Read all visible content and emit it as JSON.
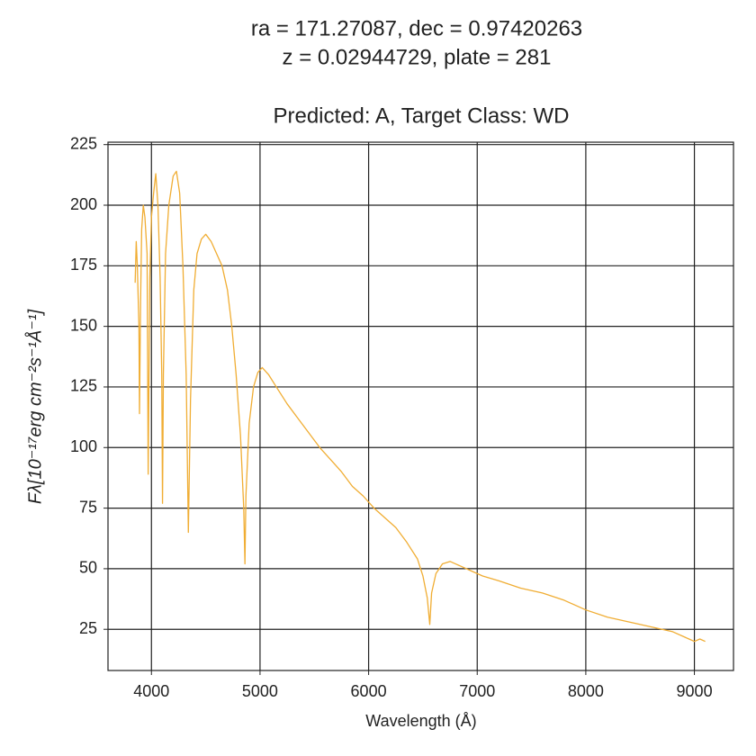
{
  "chart_data": {
    "type": "line",
    "title": [
      "ra = 171.27087, dec = 0.97420263",
      "z = 0.02944729, plate = 281"
    ],
    "subtitle": "Predicted: A, Target Class: WD",
    "xlabel": "Wavelength (Å)",
    "ylabel": "Fλ[10⁻¹⁷erg cm⁻²s⁻¹Å⁻¹]",
    "xlim": [
      3600,
      9360
    ],
    "ylim": [
      8,
      226
    ],
    "xticks": [
      4000,
      5000,
      6000,
      7000,
      8000,
      9000
    ],
    "yticks": [
      25,
      50,
      75,
      100,
      125,
      150,
      175,
      200,
      225
    ],
    "grid": true,
    "series": [
      {
        "color": "#f0ad33",
        "x": [
          3850,
          3860,
          3870,
          3885,
          3890,
          3900,
          3910,
          3925,
          3940,
          3960,
          3970,
          3985,
          4000,
          4020,
          4040,
          4060,
          4080,
          4095,
          4102,
          4110,
          4130,
          4160,
          4200,
          4230,
          4260,
          4290,
          4320,
          4340,
          4360,
          4390,
          4420,
          4460,
          4500,
          4550,
          4600,
          4650,
          4700,
          4740,
          4780,
          4820,
          4850,
          4861,
          4870,
          4900,
          4940,
          4980,
          5020,
          5080,
          5150,
          5250,
          5350,
          5450,
          5550,
          5650,
          5750,
          5850,
          5950,
          6050,
          6150,
          6250,
          6350,
          6450,
          6500,
          6540,
          6563,
          6580,
          6620,
          6680,
          6750,
          6850,
          6950,
          7050,
          7200,
          7400,
          7600,
          7800,
          8000,
          8200,
          8400,
          8600,
          8800,
          8950,
          9000,
          9050,
          9100
        ],
        "values": [
          168,
          185,
          175,
          150,
          114,
          160,
          190,
          200,
          195,
          180,
          89,
          170,
          195,
          205,
          213,
          200,
          170,
          130,
          77,
          130,
          180,
          200,
          212,
          214,
          205,
          175,
          130,
          65,
          120,
          165,
          180,
          186,
          188,
          185,
          180,
          175,
          165,
          150,
          130,
          105,
          75,
          52,
          80,
          110,
          125,
          131,
          133,
          130,
          125,
          118,
          112,
          106,
          100,
          95,
          90,
          84,
          80,
          75,
          71,
          67,
          61,
          54,
          47,
          38,
          27,
          40,
          48,
          52,
          53,
          51,
          49,
          47,
          45,
          42,
          40,
          37,
          33,
          30,
          28,
          26,
          24,
          21,
          20,
          21,
          20
        ]
      }
    ]
  }
}
